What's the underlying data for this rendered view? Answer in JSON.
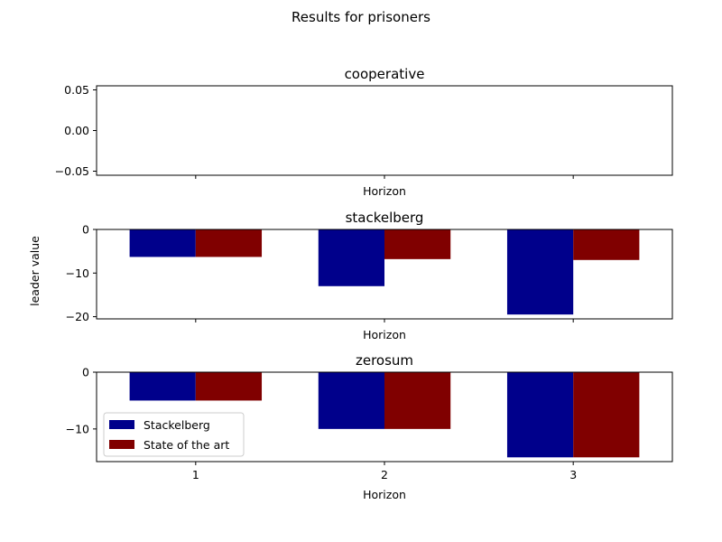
{
  "colors": {
    "stackelberg": "#00008b",
    "state_of_the_art": "#800000"
  },
  "chart_data": {
    "type": "bar",
    "title": "Results for prisoners",
    "ylabel": "leader value",
    "legend": {
      "placement": "lower-left",
      "subplot": "zerosum",
      "entries": [
        "Stackelberg",
        "State of the art"
      ]
    },
    "series_names": [
      "Stackelberg",
      "State of the art"
    ],
    "subplots": [
      {
        "title": "cooperative",
        "xlabel": "Horizon",
        "categories": [
          "1",
          "2",
          "3"
        ],
        "series": [
          {
            "name": "Stackelberg",
            "values": [
              0,
              0,
              0
            ]
          },
          {
            "name": "State of the art",
            "values": [
              0,
              0,
              0
            ]
          }
        ],
        "ylim": [
          -0.055,
          0.055
        ],
        "yticks": [
          {
            "value": 0.05,
            "label": "0.05"
          },
          {
            "value": 0.0,
            "label": "0.00"
          },
          {
            "value": -0.05,
            "label": "−0.05"
          }
        ],
        "show_xtick_labels": false
      },
      {
        "title": "stackelberg",
        "xlabel": "Horizon",
        "categories": [
          "1",
          "2",
          "3"
        ],
        "series": [
          {
            "name": "Stackelberg",
            "values": [
              -6.3,
              -13.0,
              -19.5
            ]
          },
          {
            "name": "State of the art",
            "values": [
              -6.3,
              -6.8,
              -7.0
            ]
          }
        ],
        "ylim": [
          -20.5,
          0
        ],
        "yticks": [
          {
            "value": 0,
            "label": "0"
          },
          {
            "value": -10,
            "label": "−10"
          },
          {
            "value": -20,
            "label": "−20"
          }
        ],
        "show_xtick_labels": false
      },
      {
        "title": "zerosum",
        "xlabel": "Horizon",
        "categories": [
          "1",
          "2",
          "3"
        ],
        "series": [
          {
            "name": "Stackelberg",
            "values": [
              -5,
              -10,
              -15
            ]
          },
          {
            "name": "State of the art",
            "values": [
              -5,
              -10,
              -15
            ]
          }
        ],
        "ylim": [
          -15.75,
          0
        ],
        "yticks": [
          {
            "value": 0,
            "label": "0"
          },
          {
            "value": -10,
            "label": "−10"
          }
        ],
        "show_xtick_labels": true
      }
    ]
  }
}
